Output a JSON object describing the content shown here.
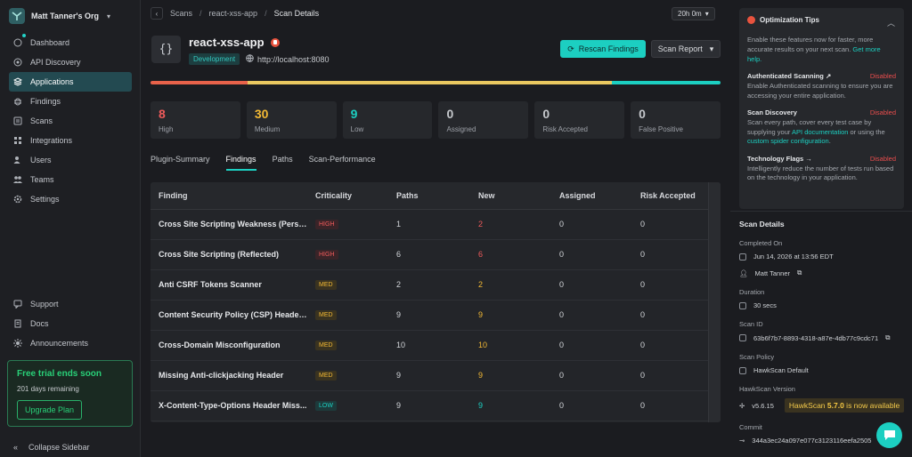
{
  "org": {
    "name": "Matt Tanner's Org"
  },
  "nav": {
    "items": [
      {
        "label": "Dashboard",
        "icon": "dashboard-icon"
      },
      {
        "label": "API Discovery",
        "icon": "discovery-icon"
      },
      {
        "label": "Applications",
        "icon": "applications-icon",
        "active": true
      },
      {
        "label": "Findings",
        "icon": "bug-icon"
      },
      {
        "label": "Scans",
        "icon": "scans-icon"
      },
      {
        "label": "Integrations",
        "icon": "integrations-icon"
      },
      {
        "label": "Users",
        "icon": "users-icon"
      },
      {
        "label": "Teams",
        "icon": "teams-icon"
      },
      {
        "label": "Settings",
        "icon": "gear-icon"
      }
    ],
    "bottom": [
      {
        "label": "Support",
        "icon": "support-icon"
      },
      {
        "label": "Docs",
        "icon": "docs-icon"
      },
      {
        "label": "Announcements",
        "icon": "announcements-icon"
      }
    ],
    "collapse": "Collapse Sidebar"
  },
  "trial": {
    "title": "Free trial ends soon",
    "remaining": "201 days remaining",
    "button": "Upgrade Plan"
  },
  "breadcrumb": {
    "items": [
      "Scans",
      "react-xss-app",
      "Scan Details"
    ]
  },
  "time": "20h 0m",
  "app": {
    "name": "react-xss-app",
    "env": "Development",
    "host": "http://localhost:8080"
  },
  "actions": {
    "rescan": "Rescan Findings",
    "report": "Scan Report"
  },
  "severity_bar": [
    {
      "level": "High",
      "fraction": 0.17,
      "color": "#e8624a"
    },
    {
      "level": "Medium",
      "fraction": 0.64,
      "color": "#e9c860"
    },
    {
      "level": "Low",
      "fraction": 0.19,
      "color": "#1ccfc1"
    }
  ],
  "stats": [
    {
      "value": "8",
      "label": "High",
      "color": "#ee5a5a"
    },
    {
      "value": "30",
      "label": "Medium",
      "color": "#f3b934"
    },
    {
      "value": "9",
      "label": "Low",
      "color": "#1ccfc1"
    },
    {
      "value": "0",
      "label": "Assigned",
      "color": "#c5c8cc"
    },
    {
      "value": "0",
      "label": "Risk Accepted",
      "color": "#c5c8cc"
    },
    {
      "value": "0",
      "label": "False Positive",
      "color": "#c5c8cc"
    }
  ],
  "tabs": [
    "Plugin-Summary",
    "Findings",
    "Paths",
    "Scan-Performance"
  ],
  "table": {
    "headers": [
      "Finding",
      "Criticality",
      "Paths",
      "New",
      "Assigned",
      "Risk Accepted"
    ],
    "rows": [
      {
        "finding": "Cross Site Scripting Weakness (Persis...",
        "crit": "HIGH",
        "paths": "1",
        "new": "2",
        "assigned": "0",
        "risk": "0"
      },
      {
        "finding": "Cross Site Scripting (Reflected)",
        "crit": "HIGH",
        "paths": "6",
        "new": "6",
        "assigned": "0",
        "risk": "0"
      },
      {
        "finding": "Anti CSRF Tokens Scanner",
        "crit": "MED",
        "paths": "2",
        "new": "2",
        "assigned": "0",
        "risk": "0"
      },
      {
        "finding": "Content Security Policy (CSP) Header ...",
        "crit": "MED",
        "paths": "9",
        "new": "9",
        "assigned": "0",
        "risk": "0"
      },
      {
        "finding": "Cross-Domain Misconfiguration",
        "crit": "MED",
        "paths": "10",
        "new": "10",
        "assigned": "0",
        "risk": "0"
      },
      {
        "finding": "Missing Anti-clickjacking Header",
        "crit": "MED",
        "paths": "9",
        "new": "9",
        "assigned": "0",
        "risk": "0"
      },
      {
        "finding": "X-Content-Type-Options Header Miss...",
        "crit": "LOW",
        "paths": "9",
        "new": "9",
        "assigned": "0",
        "risk": "0"
      }
    ]
  },
  "crit_colors": {
    "HIGH": {
      "bg": "#3a2428",
      "fg": "#ee5a5a"
    },
    "MED": {
      "bg": "#3a3320",
      "fg": "#f3b934"
    },
    "LOW": {
      "bg": "#1d3a3b",
      "fg": "#1ccfc1"
    }
  },
  "tips": {
    "title": "Optimization Tips",
    "intro": "Enable these features now for faster, more accurate results on your next scan.",
    "intro_link": "Get more help.",
    "items": [
      {
        "title": "Authenticated Scanning",
        "status": "Disabled",
        "body": "Enable Authenticated scanning to ensure you are accessing your entire application."
      },
      {
        "title": "Scan Discovery",
        "status": "Disabled",
        "body_pre": "Scan every path, cover every test case by supplying your ",
        "link1": "API documentation",
        "body_mid": " or using the ",
        "link2": "custom spider configuration",
        "body_post": "."
      },
      {
        "title": "Technology Flags",
        "status": "Disabled",
        "body": "Intelligently reduce the number of tests run based on the technology in your application."
      }
    ]
  },
  "details": {
    "title": "Scan Details",
    "completed_label": "Completed On",
    "completed": "Jun 14, 2026 at 13:56 EDT",
    "user": "Matt Tanner",
    "duration_label": "Duration",
    "duration": "30 secs",
    "scan_id_label": "Scan ID",
    "scan_id": "63b6f7b7-8893-4318-a87e-4db77c9cdc71",
    "policy_label": "Scan Policy",
    "policy": "HawkScan Default",
    "version_label": "HawkScan Version",
    "version": "v5.6.15",
    "available_pre": "HawkScan ",
    "available_ver": "5.7.0",
    "available_post": " is now available",
    "commit_label": "Commit",
    "commit": "344a3ec24a097e077c3123116eefa2505"
  }
}
